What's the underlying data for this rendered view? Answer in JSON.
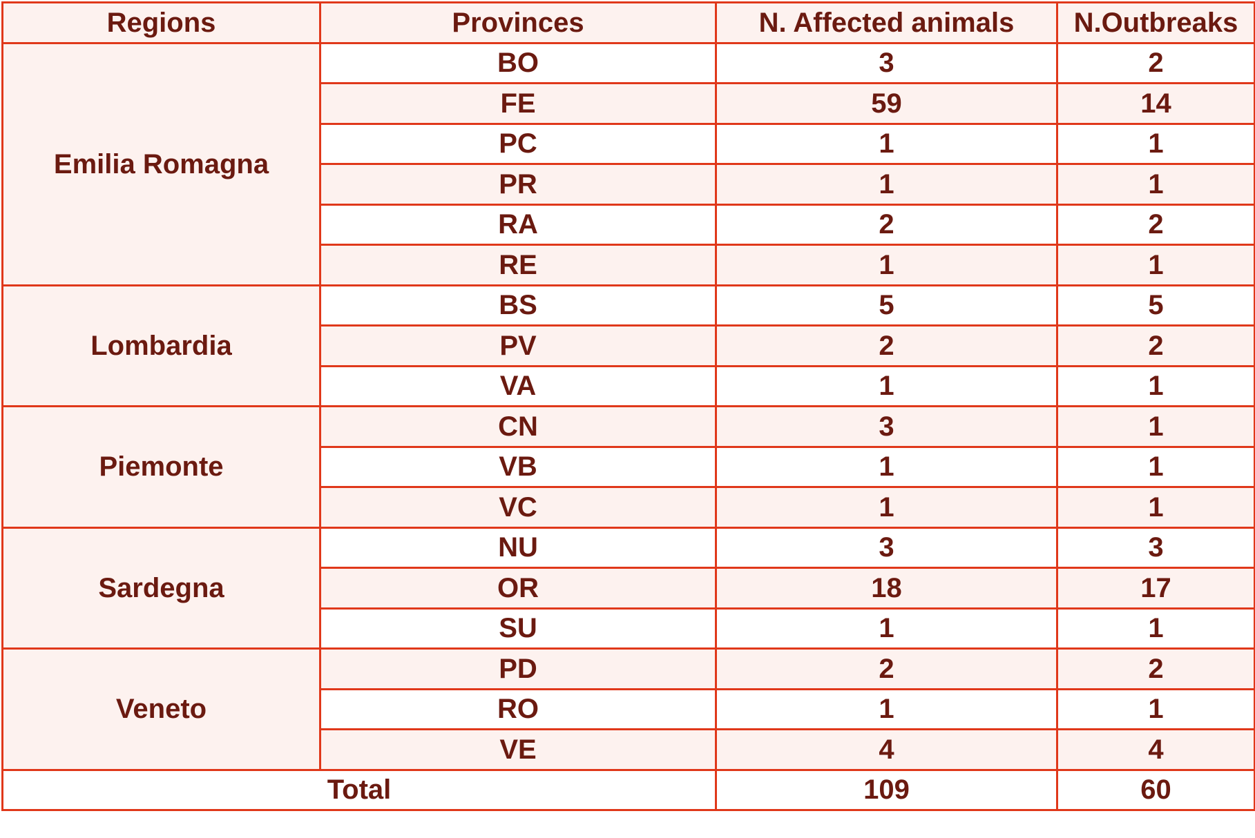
{
  "headers": [
    "Regions",
    "Provinces",
    "N. Affected animals",
    "N.Outbreaks"
  ],
  "regions": [
    {
      "name": "Emilia Romagna",
      "rows": [
        {
          "province": "BO",
          "affected": "3",
          "outbreaks": "2"
        },
        {
          "province": "FE",
          "affected": "59",
          "outbreaks": "14"
        },
        {
          "province": "PC",
          "affected": "1",
          "outbreaks": "1"
        },
        {
          "province": "PR",
          "affected": "1",
          "outbreaks": "1"
        },
        {
          "province": "RA",
          "affected": "2",
          "outbreaks": "2"
        },
        {
          "province": "RE",
          "affected": "1",
          "outbreaks": "1"
        }
      ]
    },
    {
      "name": "Lombardia",
      "rows": [
        {
          "province": "BS",
          "affected": "5",
          "outbreaks": "5"
        },
        {
          "province": "PV",
          "affected": "2",
          "outbreaks": "2"
        },
        {
          "province": "VA",
          "affected": "1",
          "outbreaks": "1"
        }
      ]
    },
    {
      "name": "Piemonte",
      "rows": [
        {
          "province": "CN",
          "affected": "3",
          "outbreaks": "1"
        },
        {
          "province": "VB",
          "affected": "1",
          "outbreaks": "1"
        },
        {
          "province": "VC",
          "affected": "1",
          "outbreaks": "1"
        }
      ]
    },
    {
      "name": "Sardegna",
      "rows": [
        {
          "province": "NU",
          "affected": "3",
          "outbreaks": "3"
        },
        {
          "province": "OR",
          "affected": "18",
          "outbreaks": "17"
        },
        {
          "province": "SU",
          "affected": "1",
          "outbreaks": "1"
        }
      ]
    },
    {
      "name": "Veneto",
      "rows": [
        {
          "province": "PD",
          "affected": "2",
          "outbreaks": "2"
        },
        {
          "province": "RO",
          "affected": "1",
          "outbreaks": "1"
        },
        {
          "province": "VE",
          "affected": "4",
          "outbreaks": "4"
        }
      ]
    }
  ],
  "total": {
    "label": "Total",
    "affected": "109",
    "outbreaks": "60"
  },
  "colors": {
    "border": "#e0381a",
    "text": "#6b1a10",
    "band": "#fdf2ef"
  }
}
